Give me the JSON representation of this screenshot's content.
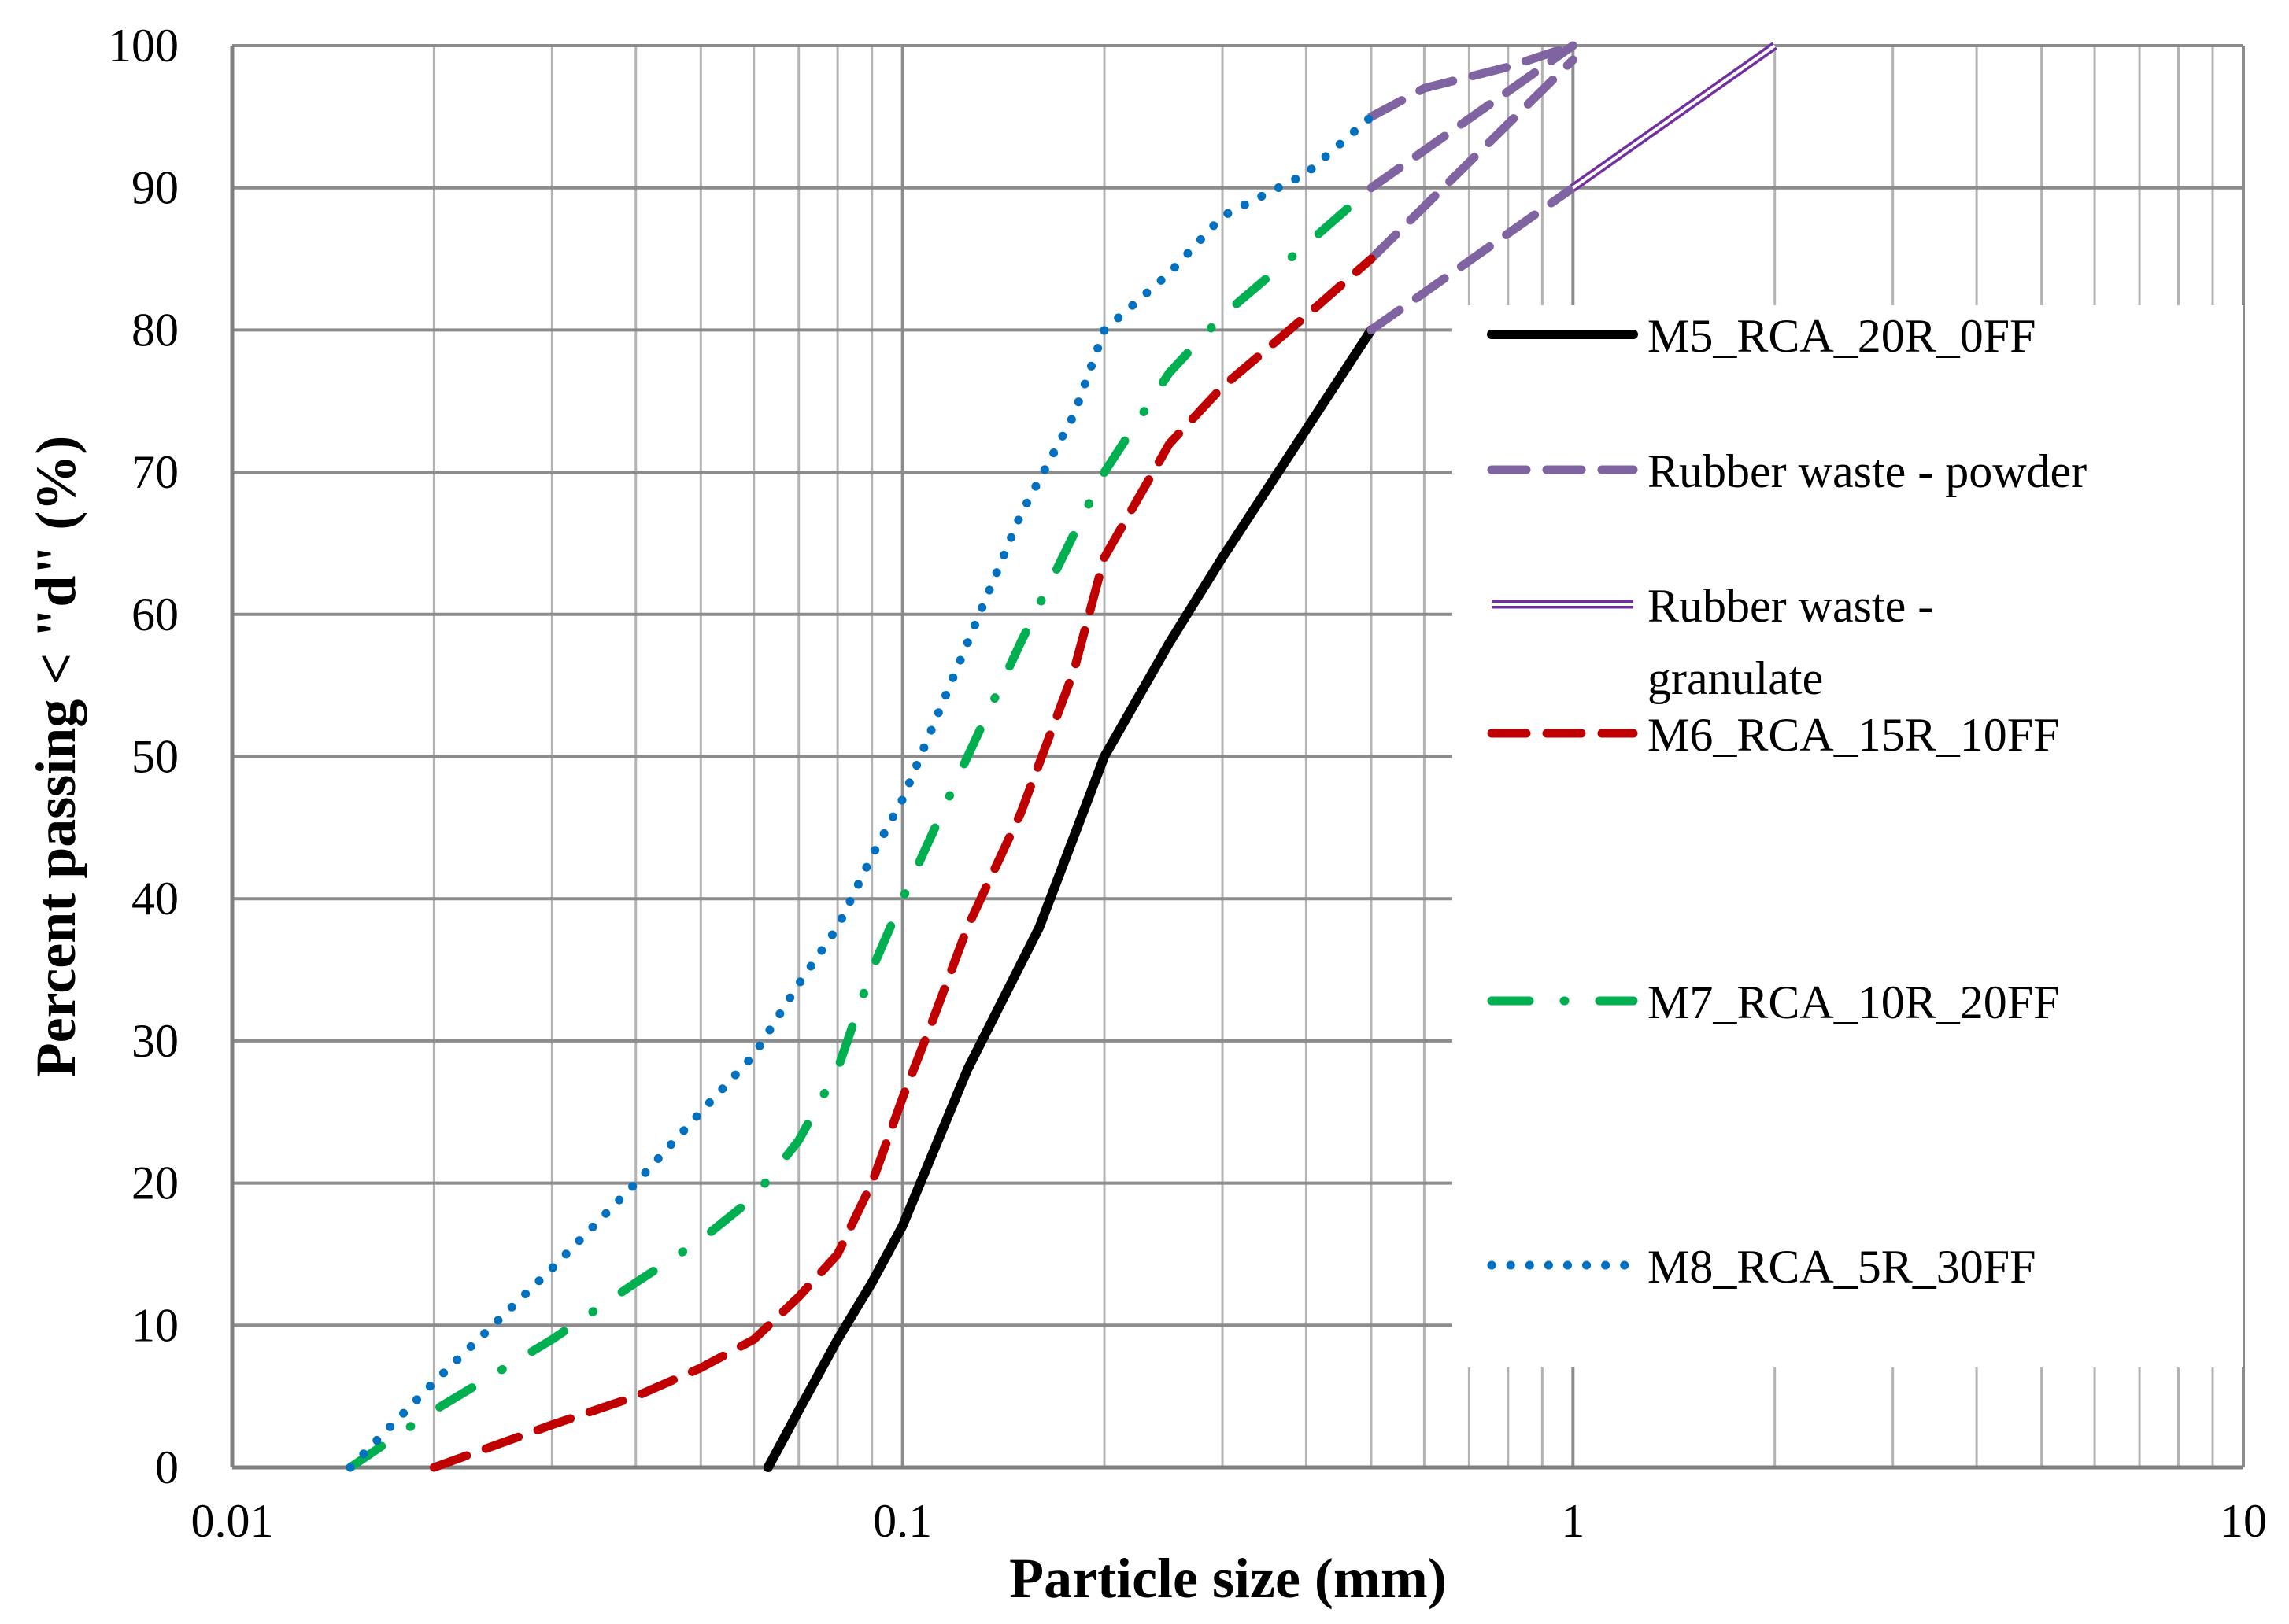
{
  "chart_data": {
    "type": "line",
    "title": "",
    "xlabel": "Particle size (mm)",
    "ylabel": "Percent passing < \"d\" (%)",
    "xscale": "log",
    "xlim": [
      0.01,
      10
    ],
    "ylim": [
      0,
      100
    ],
    "x_tick_labels": [
      "0.01",
      "0.1",
      "1",
      "10"
    ],
    "y_tick_labels": [
      "0",
      "10",
      "20",
      "30",
      "40",
      "50",
      "60",
      "70",
      "80",
      "90",
      "100"
    ],
    "grid": true,
    "legend_position": "right",
    "series": [
      {
        "name": "M5_RCA_20R_0FF",
        "color": "#000000",
        "style": "solid",
        "points": [
          [
            0.063,
            0
          ],
          [
            0.07,
            4
          ],
          [
            0.08,
            9
          ],
          [
            0.09,
            13
          ],
          [
            0.1,
            17
          ],
          [
            0.125,
            28
          ],
          [
            0.16,
            38
          ],
          [
            0.2,
            50
          ],
          [
            0.25,
            58
          ],
          [
            0.3,
            64
          ],
          [
            0.4,
            73
          ],
          [
            0.5,
            80
          ]
        ]
      },
      {
        "name": "Rubber waste - powder",
        "color": "#8064a2",
        "style": "dashed",
        "curves": [
          [
            [
              0.5,
              80
            ],
            [
              1.0,
              90
            ]
          ],
          [
            [
              0.5,
              85
            ],
            [
              1.0,
              99
            ]
          ],
          [
            [
              0.5,
              90
            ],
            [
              1.0,
              100
            ]
          ],
          [
            [
              0.5,
              95
            ],
            [
              0.6,
              97
            ],
            [
              0.8,
              98.5
            ],
            [
              1.0,
              100
            ]
          ]
        ]
      },
      {
        "name": "Rubber waste - granulate",
        "color": "#7030a0",
        "style": "double",
        "points": [
          [
            1.0,
            90
          ],
          [
            2.0,
            100
          ]
        ]
      },
      {
        "name": "M6_RCA_15R_10FF",
        "color": "#c00000",
        "style": "dashed",
        "points": [
          [
            0.02,
            0
          ],
          [
            0.03,
            3
          ],
          [
            0.04,
            5
          ],
          [
            0.05,
            7
          ],
          [
            0.06,
            9
          ],
          [
            0.07,
            12
          ],
          [
            0.08,
            15
          ],
          [
            0.09,
            20
          ],
          [
            0.1,
            26
          ],
          [
            0.11,
            31
          ],
          [
            0.125,
            38
          ],
          [
            0.15,
            46
          ],
          [
            0.18,
            56
          ],
          [
            0.2,
            64
          ],
          [
            0.25,
            72
          ],
          [
            0.3,
            76
          ],
          [
            0.4,
            81
          ],
          [
            0.5,
            85
          ]
        ]
      },
      {
        "name": "M7_RCA_10R_20FF",
        "color": "#00b050",
        "style": "dash-dot",
        "points": [
          [
            0.015,
            0
          ],
          [
            0.02,
            4
          ],
          [
            0.03,
            9
          ],
          [
            0.04,
            13
          ],
          [
            0.05,
            16
          ],
          [
            0.06,
            19
          ],
          [
            0.07,
            23
          ],
          [
            0.08,
            28
          ],
          [
            0.09,
            35
          ],
          [
            0.1,
            40
          ],
          [
            0.125,
            50
          ],
          [
            0.15,
            58
          ],
          [
            0.2,
            70
          ],
          [
            0.25,
            77
          ],
          [
            0.3,
            81
          ],
          [
            0.4,
            86
          ],
          [
            0.5,
            90
          ]
        ]
      },
      {
        "name": "M8_RCA_5R_30FF",
        "color": "#0070c0",
        "style": "dotted",
        "points": [
          [
            0.015,
            0
          ],
          [
            0.02,
            6
          ],
          [
            0.03,
            14
          ],
          [
            0.04,
            20
          ],
          [
            0.05,
            25
          ],
          [
            0.06,
            29
          ],
          [
            0.07,
            34
          ],
          [
            0.08,
            38
          ],
          [
            0.09,
            43
          ],
          [
            0.1,
            47
          ],
          [
            0.125,
            58
          ],
          [
            0.15,
            67
          ],
          [
            0.18,
            74
          ],
          [
            0.2,
            80
          ],
          [
            0.25,
            84
          ],
          [
            0.3,
            88
          ],
          [
            0.4,
            91
          ],
          [
            0.5,
            95
          ]
        ]
      }
    ],
    "legend": [
      "M5_RCA_20R_0FF",
      "Rubber waste - powder",
      "Rubber waste - granulate",
      "M6_RCA_15R_10FF",
      "M7_RCA_10R_20FF",
      "M8_RCA_5R_30FF"
    ]
  }
}
